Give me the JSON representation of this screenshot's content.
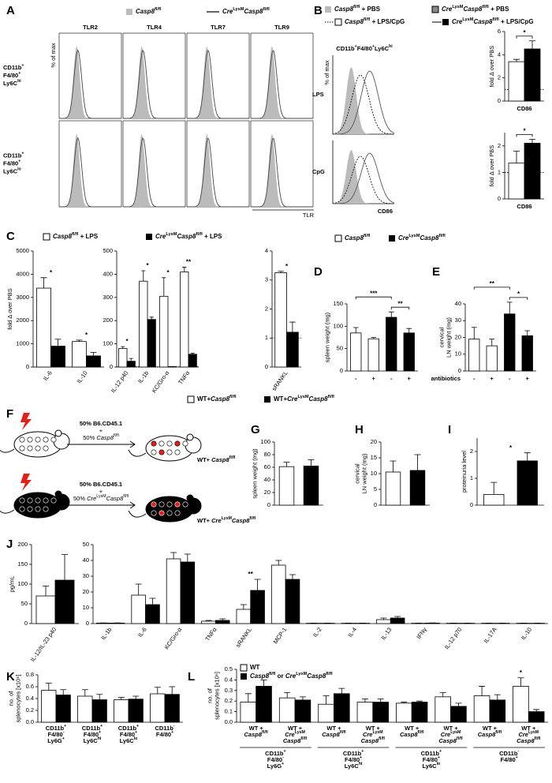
{
  "letters": [
    "A",
    "B",
    "C",
    "D",
    "E",
    "F",
    "G",
    "H",
    "I",
    "J",
    "K",
    "L"
  ],
  "legends": {
    "A": [
      "Casp8fl/fl",
      "CreLysMCasp8fl/fl"
    ],
    "B": [
      "Casp8fl/fl + PBS",
      "CreLysMCasp8fl/fl + PBS",
      "Casp8fl/fl + LPS/CpG",
      "CreLysMCasp8fl/fl + LPS/CpG"
    ],
    "C": [
      "Casp8fl/fl + LPS",
      "CreLysMCasp8fl/fl + LPS"
    ],
    "D": [
      "Casp8fl/fl",
      "CreLysMCasp8fl/fl"
    ],
    "G": [
      "WT+Casp8fl/fl",
      "WT+CreLysMCasp8fl/fl"
    ],
    "L": [
      "WT",
      "Casp8fl/fl or CreLysMCasp8fl/fl"
    ]
  },
  "panel_A": {
    "columns": [
      "TLR2",
      "TLR4",
      "TLR7",
      "TLR9"
    ],
    "rows": [
      [
        "CD11b+",
        "F4/80+",
        "Ly6Chi"
      ],
      [
        "CD11b+",
        "F4/80+",
        "Ly6Clo"
      ]
    ],
    "ylabel": "% of max",
    "xlabel": "TLR"
  },
  "panel_B": {
    "title": "CD11b+F4/80+Ly6Chi",
    "rows": [
      "LPS",
      "CpG"
    ],
    "ylabel": "% of max",
    "xlabel": "CD86"
  },
  "panel_F": {
    "texts": [
      "50% B6.CD45.1",
      "+",
      "50% Casp8fl/fl",
      "WT+ Casp8fl/fl",
      "50% B6.CD45.1",
      "+",
      "50% CreLysMCasp8fl/fl",
      "WT+ CreLysMCasp8fl/fl"
    ]
  },
  "chart_data": [
    {
      "type": "bar",
      "ylabel": "fold Δ over PBS",
      "categories": [
        "CD86"
      ],
      "series": [
        {
          "color": "#ffffff",
          "values": [
            3.4
          ],
          "errors": [
            0.2
          ]
        },
        {
          "color": "#000000",
          "values": [
            4.5
          ],
          "errors": [
            0.7
          ]
        }
      ],
      "ylim": [
        0,
        6
      ],
      "yticks": [
        0,
        2,
        4,
        6
      ],
      "ref_line": 1,
      "annotations": [
        "*"
      ]
    },
    {
      "type": "bar",
      "ylabel": "fold Δ over PBS",
      "categories": [
        "CD86"
      ],
      "series": [
        {
          "color": "#ffffff",
          "values": [
            1.35
          ],
          "errors": [
            0.45
          ]
        },
        {
          "color": "#000000",
          "values": [
            2.1
          ],
          "errors": [
            0.15
          ]
        }
      ],
      "ylim": [
        0,
        2.5
      ],
      "yticks": [
        0,
        1,
        2
      ],
      "ref_line": 1,
      "annotations": [
        "*"
      ]
    },
    {
      "type": "bar",
      "ylabel": "fold Δ over PBS",
      "categories": [
        "IL-6",
        "IL-10"
      ],
      "series": [
        {
          "color": "#ffffff",
          "values": [
            3400,
            1100
          ],
          "errors": [
            450,
            60
          ]
        },
        {
          "color": "#000000",
          "values": [
            900,
            480
          ],
          "errors": [
            300,
            150
          ]
        }
      ],
      "ylim": [
        0,
        5000
      ],
      "yticks": [
        0,
        1000,
        2000,
        3000,
        4000,
        5000
      ],
      "ref_line": 1,
      "annotations": [
        "*",
        "*"
      ]
    },
    {
      "type": "bar",
      "categories": [
        "IL-12 p40",
        "IL-1b",
        "KC/Gro-α",
        "TNFα"
      ],
      "series": [
        {
          "color": "#ffffff",
          "values": [
            80,
            370,
            305,
            410
          ],
          "errors": [
            8,
            45,
            80,
            20
          ]
        },
        {
          "color": "#000000",
          "values": [
            25,
            205,
            2,
            55
          ],
          "errors": [
            12,
            10,
            0,
            5
          ]
        }
      ],
      "ylim": [
        0,
        500
      ],
      "yticks": [
        0,
        100,
        200,
        300,
        400,
        500
      ],
      "ref_line": 1,
      "annotations": [
        "*",
        "*",
        "*",
        "**"
      ]
    },
    {
      "type": "bar",
      "categories": [
        "sRANKL"
      ],
      "series": [
        {
          "color": "#ffffff",
          "values": [
            3.25
          ],
          "errors": [
            0.05
          ]
        },
        {
          "color": "#000000",
          "values": [
            1.2
          ],
          "errors": [
            0.35
          ]
        }
      ],
      "ylim": [
        0,
        4
      ],
      "yticks": [
        0,
        1,
        2,
        3,
        4
      ],
      "ref_line": 1,
      "annotations": [
        "*"
      ]
    },
    {
      "type": "bar",
      "ylabel": "spleen weight (mg)",
      "categories": [
        "-",
        "+",
        "-",
        "+"
      ],
      "values": [
        85,
        72,
        120,
        85
      ],
      "errors": [
        12,
        3,
        12,
        10
      ],
      "colors": [
        "#ffffff",
        "#ffffff",
        "#000000",
        "#000000"
      ],
      "ylim": [
        0,
        150
      ],
      "yticks": [
        0,
        50,
        100,
        150
      ],
      "annotations": [
        "***",
        "**"
      ]
    },
    {
      "type": "bar",
      "ylabel": [
        "cervical",
        "LN weight (mg)"
      ],
      "xlabel": "antibiotics",
      "categories": [
        "-",
        "+",
        "-",
        "+"
      ],
      "values": [
        19,
        15,
        34,
        21
      ],
      "errors": [
        7,
        4,
        7,
        3
      ],
      "colors": [
        "#ffffff",
        "#ffffff",
        "#000000",
        "#000000"
      ],
      "ylim": [
        0,
        40
      ],
      "yticks": [
        0,
        10,
        20,
        30,
        40
      ],
      "annotations": [
        "**",
        "*"
      ]
    },
    {
      "type": "bar",
      "ylabel": "spleen weight (mg)",
      "categories": [
        null,
        null
      ],
      "values": [
        61,
        62
      ],
      "errors": [
        7,
        10
      ],
      "colors": [
        "#ffffff",
        "#000000"
      ],
      "ylim": [
        0,
        100
      ],
      "yticks": [
        0,
        20,
        40,
        60,
        80,
        100
      ]
    },
    {
      "type": "bar",
      "ylabel": [
        "cervical",
        "LN weight (mg)"
      ],
      "categories": [
        null,
        null
      ],
      "values": [
        10.5,
        11
      ],
      "errors": [
        3.5,
        5
      ],
      "colors": [
        "#ffffff",
        "#000000"
      ],
      "ylim": [
        0,
        20
      ],
      "yticks": [
        0,
        5,
        10,
        15,
        20
      ]
    },
    {
      "type": "bar",
      "ylabel": "proteinuria level",
      "categories": [
        null,
        null
      ],
      "values": [
        0.4,
        1.65
      ],
      "errors": [
        0.45,
        0.3
      ],
      "colors": [
        "#ffffff",
        "#000000"
      ],
      "ylim": [
        0,
        2.5
      ],
      "yticks": [
        0,
        1,
        2
      ],
      "annotations": [
        "*"
      ]
    },
    {
      "type": "bar",
      "ylabel": "pg/mL",
      "categories": [
        "IL-12/IL-23 p40"
      ],
      "series": [
        {
          "color": "#ffffff",
          "values": [
            70
          ],
          "errors": [
            25
          ]
        },
        {
          "color": "#000000",
          "values": [
            110
          ],
          "errors": [
            65
          ]
        }
      ],
      "ylim": [
        0,
        200
      ],
      "yticks": [
        0,
        50,
        100,
        150,
        200
      ]
    },
    {
      "type": "bar",
      "categories": [
        "IL-1b",
        "IL-6",
        "KC/Gro-α",
        "TNFα",
        "sRANKL",
        "MCP-1",
        "IL-2",
        "IL-4",
        "IL-13",
        "IFNγ",
        "IL-12 p70",
        "IL-17A",
        "IL-10"
      ],
      "series": [
        {
          "color": "#ffffff",
          "values": [
            0.3,
            18,
            41,
            1.5,
            9,
            37,
            0.2,
            0.2,
            2.5,
            0.2,
            0.2,
            0.2,
            0.2
          ],
          "errors": [
            0.1,
            7,
            4,
            0.5,
            3,
            3,
            0.1,
            0.1,
            1,
            0.1,
            0.1,
            0.1,
            0.1
          ]
        },
        {
          "color": "#000000",
          "values": [
            0.3,
            12,
            39,
            2,
            21,
            28,
            0.2,
            0.2,
            3.5,
            0.3,
            0.2,
            0.2,
            0.2
          ],
          "errors": [
            0.1,
            4,
            5,
            1,
            7,
            3,
            0.1,
            0.1,
            1,
            0.1,
            0.1,
            0.1,
            0.1
          ]
        }
      ],
      "ylim": [
        0,
        50
      ],
      "yticks": [
        0,
        10,
        20,
        30,
        40,
        50
      ],
      "annotations": [
        "**"
      ]
    },
    {
      "type": "bar",
      "ylabel": [
        "no. of",
        "splenocytes [x10⁶]"
      ],
      "categories": [
        [
          "CD11b+",
          "F4/80-",
          "Ly6G+"
        ],
        [
          "CD11b+",
          "F4/80+",
          "Ly6Chi"
        ],
        [
          "CD11b+",
          "F4/80+",
          "Ly6Clo"
        ],
        [
          "CD11b-",
          "F4/80+"
        ]
      ],
      "series": [
        {
          "color": "#ffffff",
          "values": [
            0.54,
            0.44,
            0.38,
            0.48
          ],
          "errors": [
            0.12,
            0.11,
            0.04,
            0.11
          ]
        },
        {
          "color": "#000000",
          "values": [
            0.46,
            0.38,
            0.39,
            0.47
          ],
          "errors": [
            0.09,
            0.09,
            0.05,
            0.13
          ]
        }
      ],
      "ylim": [
        0,
        0.8
      ],
      "yticks": [
        {
          "value": 0,
          "label": "0.0"
        },
        {
          "value": 0.2,
          "label": "0.2"
        },
        {
          "value": 0.4,
          "label": "0.4"
        },
        {
          "value": 0.6,
          "label": "0.6"
        },
        {
          "value": 0.8,
          "label": "0.8"
        }
      ]
    },
    {
      "type": "bar",
      "ylabel": [
        "no. of",
        "splenocytes [x10⁶]"
      ],
      "categories": [
        [
          "WT +",
          "Casp8fl/fl"
        ],
        [
          "WT +",
          "CreLysM",
          "Casp8fl/fl"
        ],
        [
          "WT +",
          "Casp8fl/fl"
        ],
        [
          "WT +",
          "CreLysM",
          "Casp8fl/fl"
        ],
        [
          "WT +",
          "Casp8fl/fl"
        ],
        [
          "WT +",
          "CreLysM",
          "Casp8fl/fl"
        ],
        [
          "WT +",
          "Casp8fl/fl"
        ],
        [
          "WT +",
          "CreLysM",
          "Casp8fl/fl"
        ]
      ],
      "groups": [
        [
          "CD11b+",
          "F4/80-",
          "Ly6G+"
        ],
        [
          "CD11b+",
          "F4/80+",
          "Ly6Chi"
        ],
        [
          "CD11b+",
          "F4/80+",
          "Ly6Clo"
        ],
        [
          "CD11b-",
          "F4/80+"
        ]
      ],
      "series": [
        {
          "color": "#ffffff",
          "values": [
            0.19,
            0.23,
            0.17,
            0.19,
            0.18,
            0.24,
            0.25,
            0.34
          ],
          "errors": [
            0.08,
            0.05,
            0.08,
            0.03,
            0.01,
            0.04,
            0.09,
            0.08
          ]
        },
        {
          "color": "#000000",
          "values": [
            0.34,
            0.21,
            0.27,
            0.19,
            0.19,
            0.15,
            0.21,
            0.1
          ],
          "errors": [
            0.06,
            0.03,
            0.05,
            0.03,
            0.01,
            0.03,
            0.05,
            0.02
          ]
        }
      ],
      "ylim": [
        0,
        0.5
      ],
      "yticks": [
        {
          "value": 0,
          "label": "0.0"
        },
        {
          "value": 0.1,
          "label": "0.1"
        },
        {
          "value": 0.2,
          "label": "0.2"
        },
        {
          "value": 0.3,
          "label": "0.3"
        },
        {
          "value": 0.4,
          "label": "0.4"
        },
        {
          "value": 0.5,
          "label": "0.5"
        }
      ],
      "annotations": [
        "*"
      ]
    }
  ]
}
